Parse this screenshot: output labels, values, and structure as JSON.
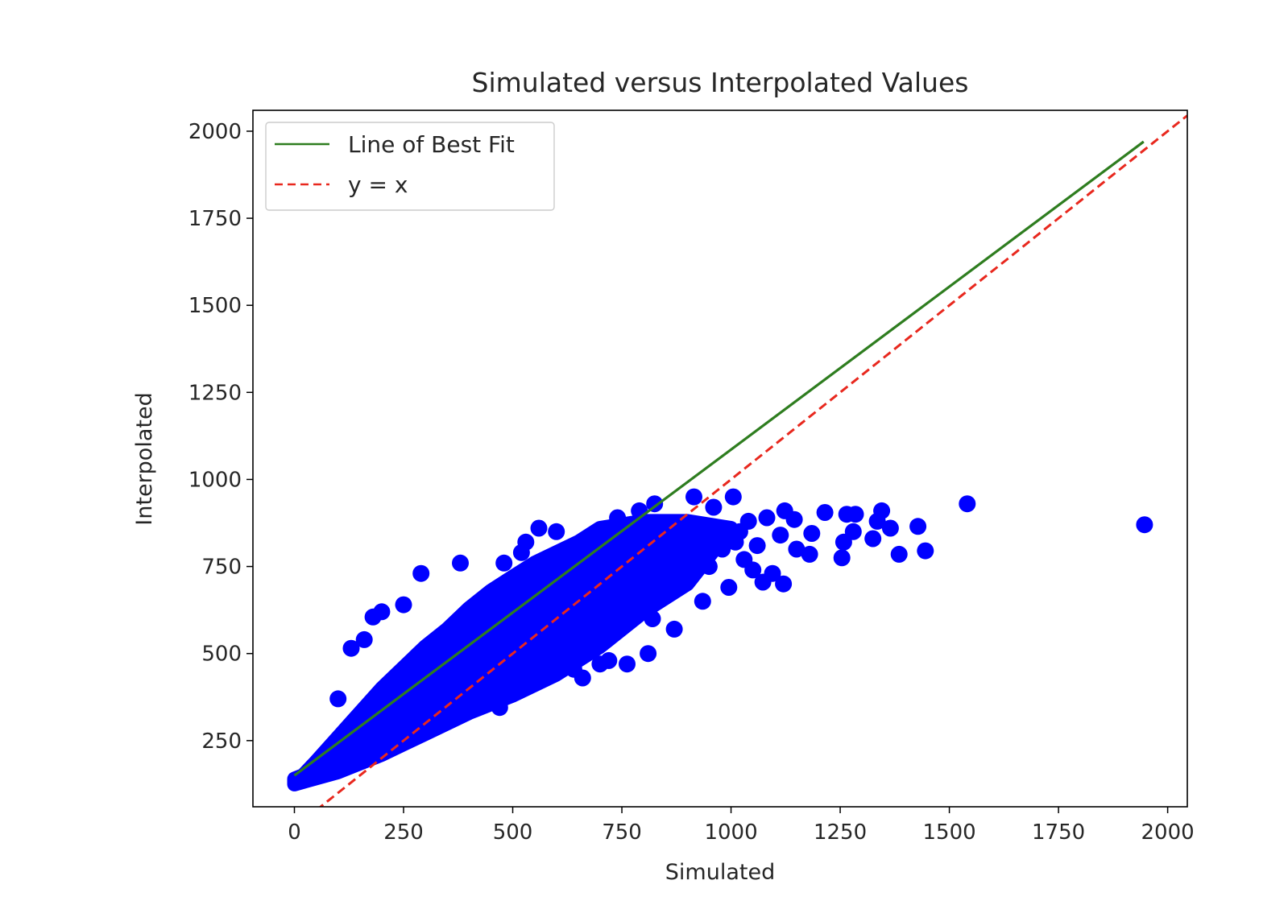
{
  "chart_data": {
    "type": "scatter",
    "title": "Simulated versus Interpolated Values",
    "xlabel": "Simulated",
    "ylabel": "Interpolated",
    "xlim": [
      -95,
      2045
    ],
    "ylim": [
      60,
      2060
    ],
    "xticks": [
      0,
      250,
      500,
      750,
      1000,
      1250,
      1500,
      1750,
      2000
    ],
    "yticks": [
      250,
      500,
      750,
      1000,
      1250,
      1500,
      1750,
      2000
    ],
    "grid": false,
    "legend_position": "top-left",
    "colors": {
      "points": "#0000ff",
      "best_fit": "#2e7d1f",
      "identity": "#e8281e"
    },
    "series": [
      {
        "name": "",
        "kind": "points",
        "cluster": [
          [
            0,
            140
          ],
          [
            20,
            150
          ],
          [
            50,
            190
          ],
          [
            100,
            260
          ],
          [
            150,
            330
          ],
          [
            200,
            400
          ],
          [
            250,
            460
          ],
          [
            300,
            520
          ],
          [
            350,
            570
          ],
          [
            400,
            630
          ],
          [
            450,
            680
          ],
          [
            500,
            720
          ],
          [
            550,
            760
          ],
          [
            600,
            790
          ],
          [
            650,
            820
          ],
          [
            700,
            860
          ],
          [
            800,
            880
          ],
          [
            900,
            880
          ],
          [
            1000,
            860
          ],
          [
            900,
            700
          ],
          [
            800,
            620
          ],
          [
            700,
            520
          ],
          [
            600,
            440
          ],
          [
            500,
            380
          ],
          [
            400,
            330
          ],
          [
            300,
            270
          ],
          [
            200,
            210
          ],
          [
            100,
            160
          ],
          [
            0,
            125
          ]
        ],
        "points": [
          [
            1947,
            870
          ],
          [
            1541,
            930
          ],
          [
            1445,
            795
          ],
          [
            1428,
            865
          ],
          [
            1385,
            785
          ],
          [
            1365,
            860
          ],
          [
            1345,
            910
          ],
          [
            1335,
            880
          ],
          [
            1325,
            830
          ],
          [
            1285,
            900
          ],
          [
            1280,
            850
          ],
          [
            1265,
            900
          ],
          [
            1258,
            820
          ],
          [
            1254,
            775
          ],
          [
            1215,
            905
          ],
          [
            1185,
            845
          ],
          [
            1180,
            785
          ],
          [
            1150,
            800
          ],
          [
            1145,
            885
          ],
          [
            1123,
            910
          ],
          [
            1120,
            700
          ],
          [
            1113,
            840
          ],
          [
            1095,
            730
          ],
          [
            1082,
            890
          ],
          [
            1073,
            705
          ],
          [
            1060,
            810
          ],
          [
            1050,
            740
          ],
          [
            1040,
            880
          ],
          [
            1030,
            770
          ],
          [
            1020,
            850
          ],
          [
            1005,
            950
          ],
          [
            995,
            690
          ],
          [
            960,
            920
          ],
          [
            915,
            950
          ],
          [
            935,
            650
          ],
          [
            870,
            570
          ],
          [
            850,
            760
          ],
          [
            825,
            930
          ],
          [
            810,
            500
          ],
          [
            790,
            910
          ],
          [
            762,
            470
          ],
          [
            780,
            620
          ],
          [
            720,
            700
          ],
          [
            690,
            650
          ],
          [
            650,
            540
          ],
          [
            600,
            500
          ],
          [
            560,
            860
          ],
          [
            530,
            820
          ],
          [
            470,
            345
          ],
          [
            420,
            390
          ],
          [
            290,
            730
          ],
          [
            380,
            760
          ],
          [
            250,
            640
          ],
          [
            180,
            605
          ],
          [
            130,
            515
          ],
          [
            160,
            540
          ],
          [
            200,
            620
          ],
          [
            210,
            390
          ],
          [
            240,
            330
          ],
          [
            300,
            300
          ],
          [
            360,
            350
          ],
          [
            560,
            450
          ],
          [
            640,
            455
          ],
          [
            720,
            480
          ],
          [
            820,
            600
          ],
          [
            880,
            720
          ],
          [
            950,
            750
          ],
          [
            980,
            800
          ],
          [
            1010,
            820
          ],
          [
            480,
            760
          ],
          [
            520,
            790
          ],
          [
            600,
            850
          ],
          [
            660,
            820
          ],
          [
            740,
            890
          ],
          [
            760,
            810
          ],
          [
            660,
            430
          ],
          [
            700,
            470
          ],
          [
            860,
            850
          ],
          [
            890,
            840
          ],
          [
            100,
            370
          ]
        ]
      },
      {
        "name": "Line of Best Fit",
        "kind": "line",
        "style": "solid",
        "x": [
          0,
          1945
        ],
        "y": [
          150,
          1970
        ]
      },
      {
        "name": "y = x",
        "kind": "line",
        "style": "dashed",
        "x": [
          50,
          2045
        ],
        "y": [
          50,
          2045
        ]
      }
    ]
  }
}
